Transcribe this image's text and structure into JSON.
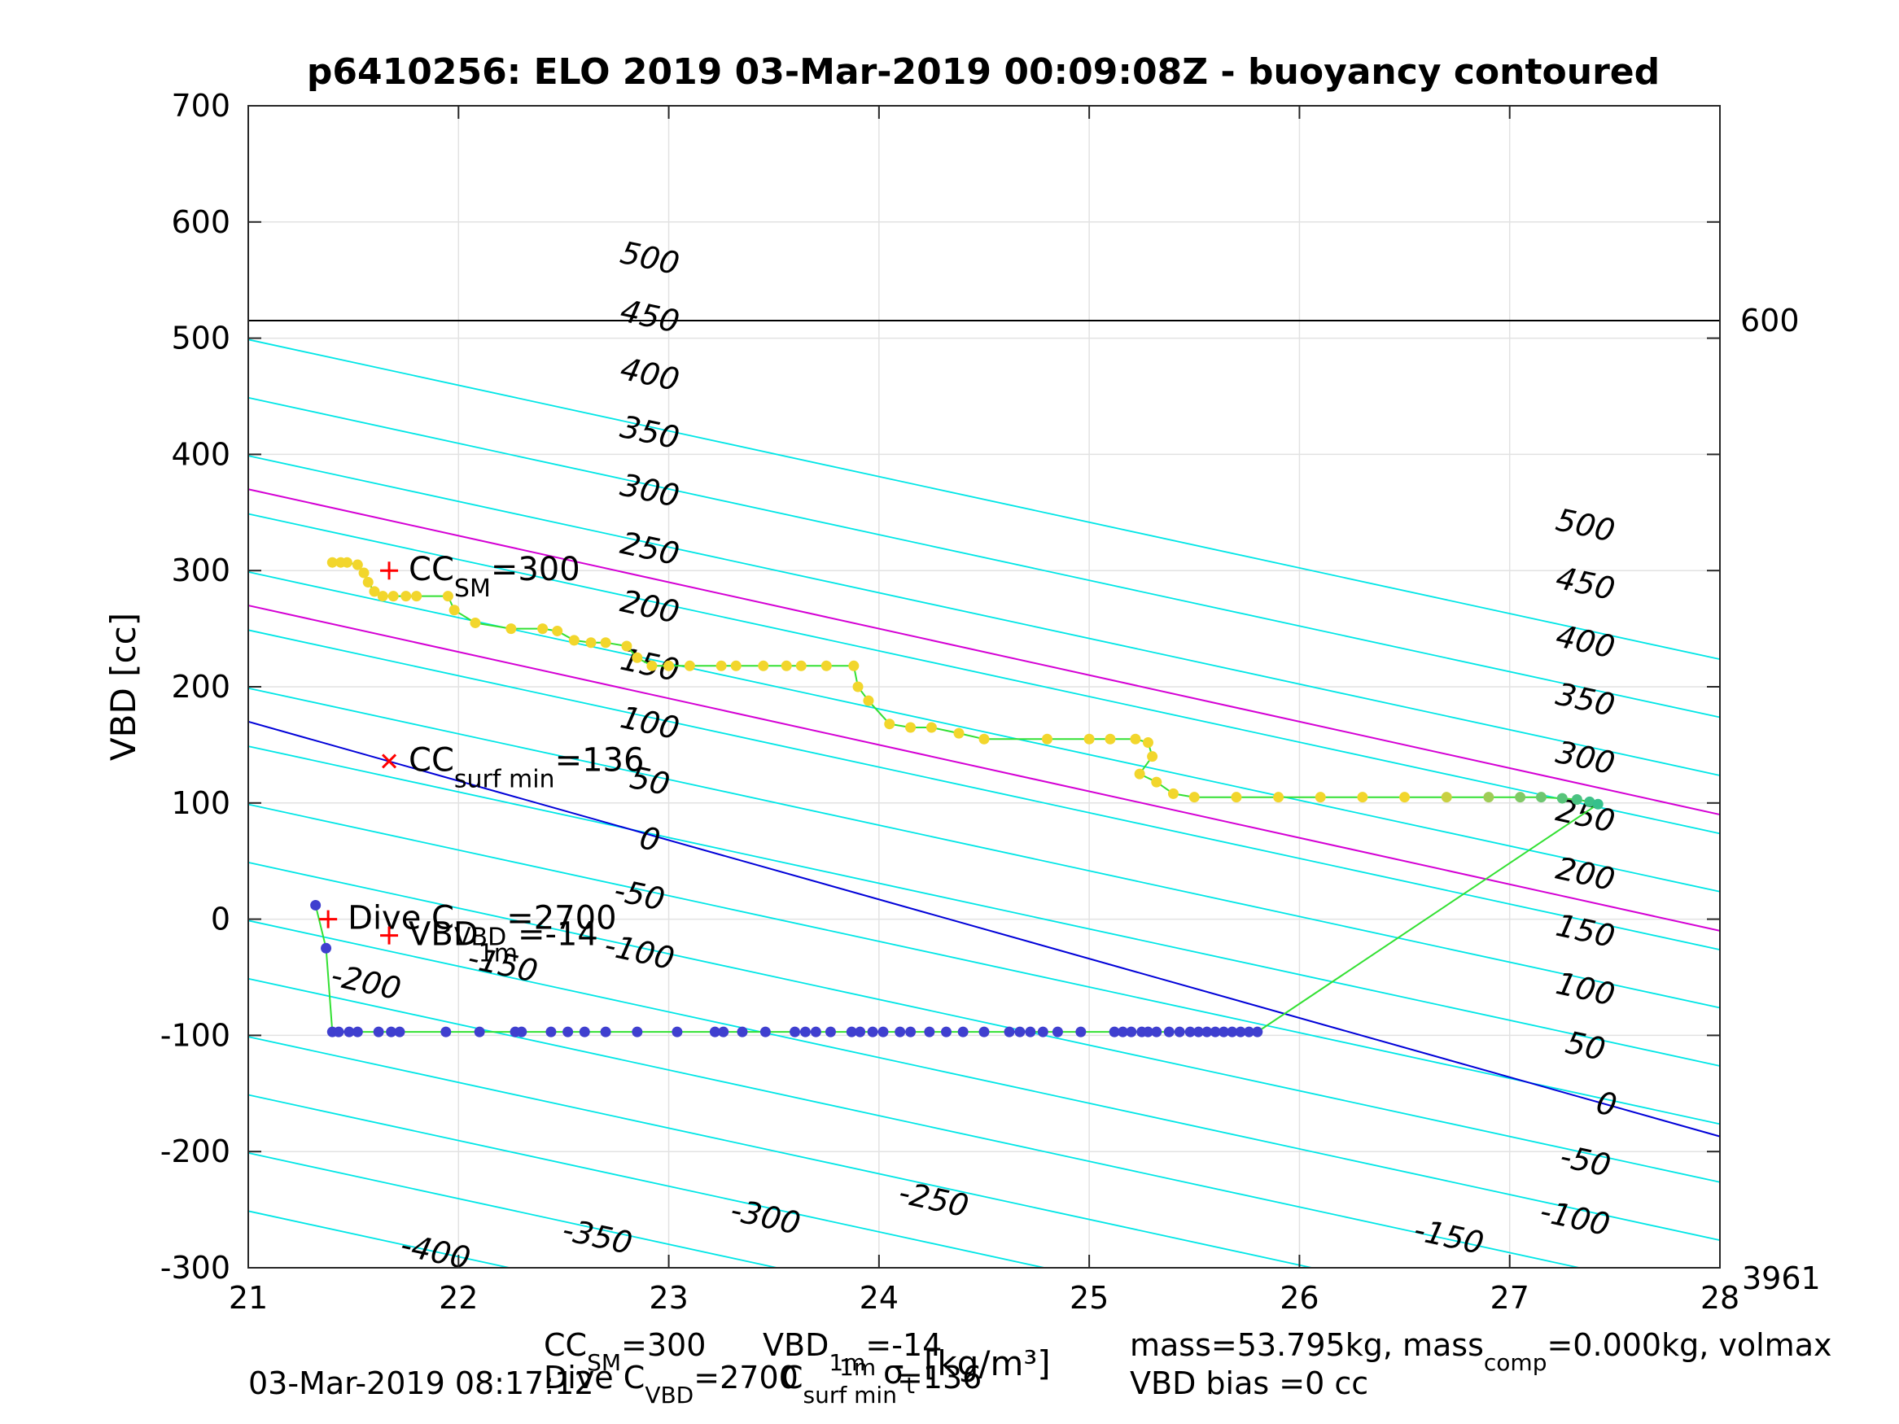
{
  "chart_data": {
    "type": "scatter",
    "title": "p6410256: ELO 2019 03-Mar-2019 00:09:08Z - buoyancy contoured",
    "xlabel_parts": {
      "sigma_sub": "1m",
      "sigma_sym": "σ",
      "sigma_sub2": "t",
      "units": "[kg/m³]"
    },
    "ylabel": "VBD [cc]",
    "xlim": [
      21,
      28
    ],
    "ylim": [
      -300,
      700
    ],
    "xticks": [
      "21",
      "22",
      "23",
      "24",
      "25",
      "26",
      "27",
      "28"
    ],
    "yticks": [
      "-300",
      "-200",
      "-100",
      "0",
      "100",
      "200",
      "300",
      "400",
      "500",
      "600",
      "700"
    ],
    "grid": true,
    "contour_slope": -39.3,
    "contour_intercept_at_21": -1.2,
    "contours": [
      -400,
      -350,
      -300,
      -250,
      -200,
      -150,
      -100,
      -50,
      0,
      50,
      100,
      150,
      200,
      250,
      300,
      350,
      400,
      450,
      500
    ],
    "contour_labels_left": [
      {
        "text": "500",
        "x": 22.9,
        "y": 560
      },
      {
        "text": "450",
        "x": 22.9,
        "y": 510
      },
      {
        "text": "400",
        "x": 22.9,
        "y": 460
      },
      {
        "text": "350",
        "x": 22.9,
        "y": 410
      },
      {
        "text": "300",
        "x": 22.9,
        "y": 360
      },
      {
        "text": "250",
        "x": 22.9,
        "y": 310
      },
      {
        "text": "200",
        "x": 22.9,
        "y": 260
      },
      {
        "text": "150",
        "x": 22.9,
        "y": 210
      },
      {
        "text": "100",
        "x": 22.9,
        "y": 160
      },
      {
        "text": "50",
        "x": 22.9,
        "y": 110
      },
      {
        "text": "0",
        "x": 22.9,
        "y": 60
      },
      {
        "text": "-50",
        "x": 22.85,
        "y": 12
      },
      {
        "text": "-100",
        "x": 22.85,
        "y": -37
      },
      {
        "text": "-150",
        "x": 22.2,
        "y": -48
      },
      {
        "text": "-200",
        "x": 21.55,
        "y": -63
      },
      {
        "text": "-250",
        "x": 24.25,
        "y": -250
      },
      {
        "text": "-300",
        "x": 23.45,
        "y": -265
      },
      {
        "text": "-350",
        "x": 22.65,
        "y": -282
      },
      {
        "text": "-400",
        "x": 21.88,
        "y": -295
      }
    ],
    "contour_labels_right": [
      {
        "text": "500",
        "x": 27.35,
        "y": 330
      },
      {
        "text": "450",
        "x": 27.35,
        "y": 280
      },
      {
        "text": "400",
        "x": 27.35,
        "y": 230
      },
      {
        "text": "350",
        "x": 27.35,
        "y": 180
      },
      {
        "text": "300",
        "x": 27.35,
        "y": 130
      },
      {
        "text": "250",
        "x": 27.35,
        "y": 80
      },
      {
        "text": "200",
        "x": 27.35,
        "y": 30
      },
      {
        "text": "150",
        "x": 27.35,
        "y": -19
      },
      {
        "text": "100",
        "x": 27.35,
        "y": -69
      },
      {
        "text": "50",
        "x": 27.35,
        "y": -118
      },
      {
        "text": "0",
        "x": 27.45,
        "y": -168
      },
      {
        "text": "-50",
        "x": 27.35,
        "y": -217
      },
      {
        "text": "-100",
        "x": 27.3,
        "y": -266
      },
      {
        "text": "-150",
        "x": 26.7,
        "y": -282
      }
    ],
    "ref_lines": [
      {
        "name": "vbd_max",
        "y0": 370,
        "slope": -40,
        "color": "#d400d4"
      },
      {
        "name": "vbd_min",
        "y0": 270,
        "slope": -40,
        "color": "#d400d4"
      },
      {
        "name": "neutral",
        "y0": 170,
        "slope": -51,
        "color": "#0000d8"
      }
    ],
    "depth_line": {
      "y": 515,
      "label": "600",
      "color": "#000000"
    },
    "bottom_right_label": "3961",
    "markers": [
      {
        "name": "cc_sm",
        "x": 21.67,
        "y": 300,
        "symbol": "+",
        "main": "CC",
        "sub": "SM",
        "tail": "=300"
      },
      {
        "name": "cc_surf_min",
        "x": 21.67,
        "y": 136,
        "symbol": "x",
        "main": "CC",
        "sub": "surf min",
        "tail": "=136"
      },
      {
        "name": "dive_c_vbd",
        "x": 21.38,
        "y": 0,
        "symbol": "+",
        "main": "Dive C",
        "sub": "VBD",
        "tail": "=2700"
      },
      {
        "name": "vbd_1m",
        "x": 21.67,
        "y": -14,
        "symbol": "+",
        "main": "VBD",
        "sub": "1m",
        "tail": "=-14"
      }
    ],
    "series": [
      {
        "name": "dive",
        "color": "#3f3fcf",
        "points": [
          [
            21.32,
            12
          ],
          [
            21.37,
            -25
          ],
          [
            21.4,
            -97
          ],
          [
            21.43,
            -97
          ],
          [
            21.48,
            -97
          ],
          [
            21.52,
            -97
          ],
          [
            21.62,
            -97
          ],
          [
            21.68,
            -97
          ],
          [
            21.72,
            -97
          ],
          [
            21.94,
            -97
          ],
          [
            22.1,
            -97
          ],
          [
            22.27,
            -97
          ],
          [
            22.3,
            -97
          ],
          [
            22.44,
            -97
          ],
          [
            22.52,
            -97
          ],
          [
            22.6,
            -97
          ],
          [
            22.7,
            -97
          ],
          [
            22.85,
            -97
          ],
          [
            23.04,
            -97
          ],
          [
            23.22,
            -97
          ],
          [
            23.26,
            -97
          ],
          [
            23.35,
            -97
          ],
          [
            23.46,
            -97
          ],
          [
            23.6,
            -97
          ],
          [
            23.65,
            -97
          ],
          [
            23.7,
            -97
          ],
          [
            23.77,
            -97
          ],
          [
            23.87,
            -97
          ],
          [
            23.91,
            -97
          ],
          [
            23.97,
            -97
          ],
          [
            24.02,
            -97
          ],
          [
            24.1,
            -97
          ],
          [
            24.15,
            -97
          ],
          [
            24.24,
            -97
          ],
          [
            24.32,
            -97
          ],
          [
            24.4,
            -97
          ],
          [
            24.5,
            -97
          ],
          [
            24.62,
            -97
          ],
          [
            24.67,
            -97
          ],
          [
            24.72,
            -97
          ],
          [
            24.78,
            -97
          ],
          [
            24.85,
            -97
          ],
          [
            24.96,
            -97
          ],
          [
            25.12,
            -97
          ],
          [
            25.16,
            -97
          ],
          [
            25.2,
            -97
          ],
          [
            25.25,
            -97
          ],
          [
            25.28,
            -97
          ],
          [
            25.32,
            -97
          ],
          [
            25.38,
            -97
          ],
          [
            25.43,
            -97
          ],
          [
            25.48,
            -97
          ],
          [
            25.52,
            -97
          ],
          [
            25.56,
            -97
          ],
          [
            25.6,
            -97
          ],
          [
            25.64,
            -97
          ],
          [
            25.68,
            -97
          ],
          [
            25.72,
            -97
          ],
          [
            25.76,
            -97
          ],
          [
            25.8,
            -97
          ]
        ]
      },
      {
        "name": "climb",
        "color": "#f2d62c",
        "points": [
          [
            21.4,
            307
          ],
          [
            21.44,
            307
          ],
          [
            21.47,
            307
          ],
          [
            21.52,
            305
          ],
          [
            21.55,
            298
          ],
          [
            21.57,
            290
          ],
          [
            21.6,
            282
          ],
          [
            21.64,
            278
          ],
          [
            21.69,
            278
          ],
          [
            21.75,
            278
          ],
          [
            21.8,
            278
          ],
          [
            21.95,
            278
          ],
          [
            21.98,
            266
          ],
          [
            22.08,
            255
          ],
          [
            22.25,
            250
          ],
          [
            22.4,
            250
          ],
          [
            22.47,
            248
          ],
          [
            22.55,
            240
          ],
          [
            22.63,
            238
          ],
          [
            22.7,
            238
          ],
          [
            22.8,
            235
          ],
          [
            22.85,
            225
          ],
          [
            22.92,
            218
          ],
          [
            23.0,
            218
          ],
          [
            23.1,
            218
          ],
          [
            23.25,
            218
          ],
          [
            23.32,
            218
          ],
          [
            23.45,
            218
          ],
          [
            23.56,
            218
          ],
          [
            23.63,
            218
          ],
          [
            23.75,
            218
          ],
          [
            23.88,
            218
          ],
          [
            23.9,
            200
          ],
          [
            23.95,
            188
          ],
          [
            24.05,
            168
          ],
          [
            24.15,
            165
          ],
          [
            24.25,
            165
          ],
          [
            24.38,
            160
          ],
          [
            24.5,
            155
          ],
          [
            24.8,
            155
          ],
          [
            25.0,
            155
          ],
          [
            25.1,
            155
          ],
          [
            25.22,
            155
          ],
          [
            25.28,
            152
          ],
          [
            25.3,
            140
          ],
          [
            25.24,
            125
          ],
          [
            25.32,
            118
          ],
          [
            25.4,
            108
          ],
          [
            25.5,
            105
          ],
          [
            25.7,
            105
          ],
          [
            25.9,
            105
          ],
          [
            26.1,
            105
          ],
          [
            26.3,
            105
          ],
          [
            26.5,
            105
          ],
          [
            26.7,
            105
          ],
          [
            26.9,
            105
          ],
          [
            27.05,
            105
          ],
          [
            27.15,
            105
          ],
          [
            27.25,
            104
          ],
          [
            27.32,
            103
          ],
          [
            27.38,
            101
          ],
          [
            27.42,
            99
          ]
        ]
      }
    ]
  },
  "footer": {
    "timestamp": "03-Mar-2019 08:17:12",
    "ccsm": {
      "main": "CC",
      "sub": "SM",
      "tail": "=300"
    },
    "vbd1m": {
      "main": "VBD",
      "sub": "1m",
      "tail": "=-14"
    },
    "divec": {
      "main": "Dive C",
      "sub": "VBD",
      "tail": "=2700"
    },
    "ccsurf": {
      "main": "C",
      "sub": "surf min",
      "tail": "=136"
    },
    "mass": {
      "main": "mass=53.795kg, mass",
      "sub": "comp",
      "tail": "=0.000kg, volmax"
    },
    "bias": "VBD bias =0 cc"
  }
}
